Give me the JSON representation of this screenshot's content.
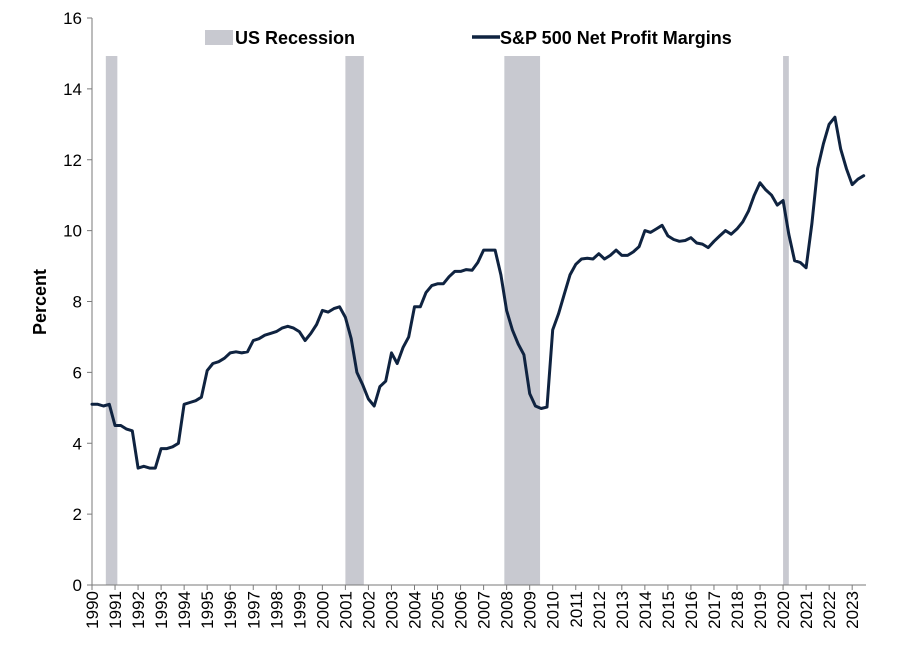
{
  "chart_data": {
    "type": "line",
    "ylabel": "Percent",
    "xlabel": "",
    "title": "",
    "ylim": [
      0,
      16
    ],
    "yticks": [
      0,
      2,
      4,
      6,
      8,
      10,
      12,
      14,
      16
    ],
    "xlim": [
      1990,
      2023.6
    ],
    "xtick_labels": [
      "1990",
      "1991",
      "1992",
      "1993",
      "1994",
      "1995",
      "1996",
      "1997",
      "1998",
      "1999",
      "2000",
      "2001",
      "2002",
      "2003",
      "2004",
      "2005",
      "2006",
      "2007",
      "2008",
      "2009",
      "2010",
      "2011",
      "2012",
      "2013",
      "2014",
      "2015",
      "2016",
      "2017",
      "2018",
      "2019",
      "2020",
      "2021",
      "2022",
      "2023"
    ],
    "grid": false,
    "legend_position": "top",
    "recessions": {
      "name": "US Recession",
      "color": "#c8c9d0",
      "periods": [
        [
          1990.6,
          1991.1
        ],
        [
          2001.0,
          2001.8
        ],
        [
          2007.9,
          2009.45
        ],
        [
          2020.0,
          2020.25
        ]
      ]
    },
    "series": [
      {
        "name": "S&P 500 Net Profit Margins",
        "color": "#0f2340",
        "x": [
          1990.0,
          1990.25,
          1990.5,
          1990.75,
          1991.0,
          1991.25,
          1991.5,
          1991.75,
          1992.0,
          1992.25,
          1992.5,
          1992.75,
          1993.0,
          1993.25,
          1993.5,
          1993.75,
          1994.0,
          1994.25,
          1994.5,
          1994.75,
          1995.0,
          1995.25,
          1995.5,
          1995.75,
          1996.0,
          1996.25,
          1996.5,
          1996.75,
          1997.0,
          1997.25,
          1997.5,
          1997.75,
          1998.0,
          1998.25,
          1998.5,
          1998.75,
          1999.0,
          1999.25,
          1999.5,
          1999.75,
          2000.0,
          2000.25,
          2000.5,
          2000.75,
          2001.0,
          2001.25,
          2001.5,
          2001.75,
          2002.0,
          2002.25,
          2002.5,
          2002.75,
          2003.0,
          2003.25,
          2003.5,
          2003.75,
          2004.0,
          2004.25,
          2004.5,
          2004.75,
          2005.0,
          2005.25,
          2005.5,
          2005.75,
          2006.0,
          2006.25,
          2006.5,
          2006.75,
          2007.0,
          2007.25,
          2007.5,
          2007.75,
          2008.0,
          2008.25,
          2008.5,
          2008.75,
          2009.0,
          2009.25,
          2009.5,
          2009.75,
          2010.0,
          2010.25,
          2010.5,
          2010.75,
          2011.0,
          2011.25,
          2011.5,
          2011.75,
          2012.0,
          2012.25,
          2012.5,
          2012.75,
          2013.0,
          2013.25,
          2013.5,
          2013.75,
          2014.0,
          2014.25,
          2014.5,
          2014.75,
          2015.0,
          2015.25,
          2015.5,
          2015.75,
          2016.0,
          2016.25,
          2016.5,
          2016.75,
          2017.0,
          2017.25,
          2017.5,
          2017.75,
          2018.0,
          2018.25,
          2018.5,
          2018.75,
          2019.0,
          2019.25,
          2019.5,
          2019.75,
          2020.0,
          2020.25,
          2020.5,
          2020.75,
          2021.0,
          2021.25,
          2021.5,
          2021.75,
          2022.0,
          2022.25,
          2022.5,
          2022.75,
          2023.0,
          2023.25,
          2023.5
        ],
        "values": [
          5.1,
          5.1,
          5.05,
          5.1,
          4.5,
          4.5,
          4.4,
          4.35,
          3.3,
          3.35,
          3.3,
          3.3,
          3.85,
          3.85,
          3.9,
          4.0,
          5.1,
          5.15,
          5.2,
          5.3,
          6.05,
          6.25,
          6.3,
          6.4,
          6.55,
          6.58,
          6.55,
          6.58,
          6.9,
          6.95,
          7.05,
          7.1,
          7.15,
          7.25,
          7.3,
          7.25,
          7.15,
          6.9,
          7.1,
          7.35,
          7.75,
          7.7,
          7.8,
          7.85,
          7.55,
          6.95,
          6.0,
          5.65,
          5.25,
          5.05,
          5.6,
          5.75,
          6.55,
          6.25,
          6.7,
          7.0,
          7.85,
          7.85,
          8.25,
          8.45,
          8.5,
          8.5,
          8.7,
          8.85,
          8.85,
          8.9,
          8.88,
          9.1,
          9.45,
          9.45,
          9.45,
          8.75,
          7.75,
          7.2,
          6.8,
          6.5,
          5.4,
          5.05,
          4.98,
          5.02,
          7.2,
          7.65,
          8.2,
          8.75,
          9.05,
          9.2,
          9.22,
          9.2,
          9.35,
          9.2,
          9.3,
          9.45,
          9.3,
          9.3,
          9.4,
          9.55,
          10.0,
          9.95,
          10.05,
          10.15,
          9.85,
          9.75,
          9.7,
          9.72,
          9.8,
          9.65,
          9.62,
          9.52,
          9.7,
          9.85,
          10.0,
          9.9,
          10.05,
          10.25,
          10.55,
          11.0,
          11.35,
          11.15,
          11.0,
          10.72,
          10.85,
          9.9,
          9.15,
          9.1,
          8.95,
          10.2,
          11.75,
          12.45,
          13.0,
          13.2,
          12.3,
          11.75,
          11.3,
          11.45,
          11.55
        ]
      }
    ]
  }
}
